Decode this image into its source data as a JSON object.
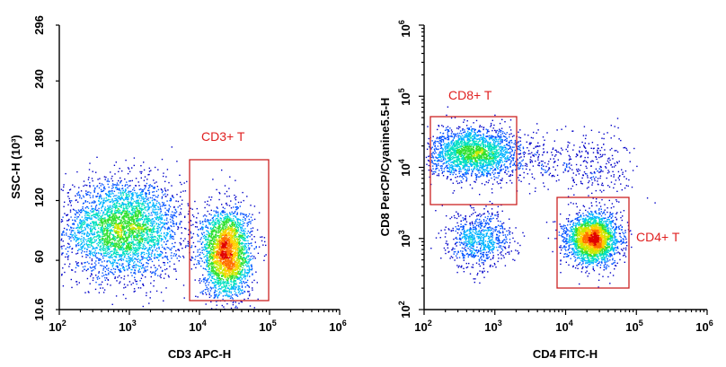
{
  "colors": {
    "gate": "#cc2222",
    "gate_label": "#e02020",
    "density": [
      "#0000c8",
      "#0050ff",
      "#00b4ff",
      "#00e0c0",
      "#30e030",
      "#c8e800",
      "#ffd000",
      "#ff7000",
      "#e00000"
    ]
  },
  "chart_data": [
    {
      "type": "scatter",
      "subtype": "flow-cytometry-density-dot-plot",
      "xlabel": "CD3 APC-H",
      "ylabel": "SSC-H (10³)",
      "x_scale": "log",
      "xlim": [
        100,
        1000000
      ],
      "x_ticks": [
        {
          "base": "10",
          "exp": "2"
        },
        {
          "base": "10",
          "exp": "3"
        },
        {
          "base": "10",
          "exp": "4"
        },
        {
          "base": "10",
          "exp": "5"
        },
        {
          "base": "10",
          "exp": "6"
        }
      ],
      "y_scale": "linear",
      "ylim": [
        10.6,
        296
      ],
      "y_ticks": [
        "10.6",
        "60",
        "120",
        "180",
        "240",
        "296"
      ],
      "populations": [
        {
          "x_center": 800,
          "y_center": 92,
          "x_spread_decades": 0.42,
          "y_spread": 24,
          "count": 3600
        },
        {
          "x_center": 24000,
          "y_center": 68,
          "x_spread_decades": 0.17,
          "y_spread": 22,
          "count": 2800
        }
      ],
      "gates": [
        {
          "label": "CD3+ T",
          "x_range": [
            7500,
            100000
          ],
          "y_range": [
            16,
            154
          ]
        }
      ]
    },
    {
      "type": "scatter",
      "subtype": "flow-cytometry-density-dot-plot",
      "xlabel": "CD4 FITC-H",
      "ylabel": "CD8 PerCP/Cyanine5.5-H",
      "x_scale": "log",
      "xlim": [
        100,
        1000000
      ],
      "x_ticks": [
        {
          "base": "10",
          "exp": "2"
        },
        {
          "base": "10",
          "exp": "3"
        },
        {
          "base": "10",
          "exp": "4"
        },
        {
          "base": "10",
          "exp": "5"
        },
        {
          "base": "10",
          "exp": "6"
        }
      ],
      "y_scale": "log",
      "ylim": [
        100,
        1000000
      ],
      "y_ticks": [
        {
          "base": "10",
          "exp": "2"
        },
        {
          "base": "10",
          "exp": "3"
        },
        {
          "base": "10",
          "exp": "4"
        },
        {
          "base": "10",
          "exp": "5"
        },
        {
          "base": "10",
          "exp": "6"
        }
      ],
      "populations": [
        {
          "x_center": 500,
          "y_center": 16000,
          "x_spread_decades": 0.32,
          "y_spread_decades": 0.17,
          "count": 2200
        },
        {
          "x_center": 600,
          "y_center": 1000,
          "x_spread_decades": 0.22,
          "y_spread_decades": 0.2,
          "count": 800
        },
        {
          "x_center": 24000,
          "y_center": 1000,
          "x_spread_decades": 0.18,
          "y_spread_decades": 0.17,
          "count": 2600
        },
        {
          "x_center": 6000,
          "y_center": 12000,
          "x_spread_decades": 0.45,
          "y_spread_decades": 0.2,
          "count": 260
        },
        {
          "x_center": 30000,
          "y_center": 9000,
          "x_spread_decades": 0.25,
          "y_spread_decades": 0.3,
          "count": 180
        }
      ],
      "gates": [
        {
          "label": "CD8+ T",
          "x_range": [
            120,
            2000
          ],
          "y_range": [
            2800,
            58000
          ]
        },
        {
          "label": "CD4+ T",
          "x_range": [
            8000,
            70000
          ],
          "y_range": [
            180,
            3700
          ]
        }
      ]
    }
  ]
}
